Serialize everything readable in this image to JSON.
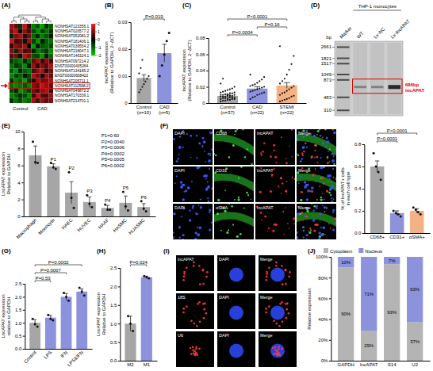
{
  "chart_data": [
    {
      "type": "heatmap",
      "panel_label": "(A)",
      "row_labels": [
        "NONHSAT123356.1",
        "NONHSAT020577.2",
        "NONHSAT052081.2",
        "NONHSAT181406.1",
        "NONHSAT039554.2",
        "NONHSAT218047.1",
        "NONHSAT146324.1",
        "NONHSAT097214.2",
        "ENST00000435264",
        "NONHSAT134185.2",
        "ENST00000608422",
        "NONHSAT205711.1",
        "NONHSAT112568.2",
        "NONHSAT049872.2",
        "NONHSAT170339.1",
        "NONHSAT214701.1"
      ],
      "columns": [
        "Control",
        "Control",
        "Control",
        "Control",
        "Control",
        "CAD",
        "CAD",
        "CAD",
        "CAD",
        "CAD"
      ],
      "cells": [
        [
          1.2,
          0.8,
          -0.5,
          1.5,
          0.3,
          -1.2,
          -0.8,
          -1.5,
          -0.4,
          -0.9
        ],
        [
          0.9,
          1.4,
          0.2,
          1.1,
          0.6,
          -0.7,
          -1.3,
          -0.6,
          -1.1,
          -0.5
        ],
        [
          -0.3,
          1.0,
          1.3,
          0.4,
          0.9,
          -1.0,
          -0.4,
          -1.2,
          -0.8,
          -0.2
        ],
        [
          1.5,
          0.5,
          0.7,
          -0.2,
          1.2,
          -0.6,
          -1.4,
          -0.3,
          -0.9,
          -1.1
        ],
        [
          0.4,
          1.1,
          0.9,
          1.3,
          -0.1,
          -1.5,
          -0.2,
          -0.8,
          -1.0,
          -0.7
        ],
        [
          1.0,
          -0.4,
          1.2,
          0.6,
          0.8,
          -0.3,
          -1.1,
          -0.9,
          -0.5,
          -1.3
        ],
        [
          0.7,
          0.9,
          -0.2,
          1.4,
          1.0,
          -0.8,
          -0.6,
          -1.4,
          -0.2,
          -1.0
        ],
        [
          -0.6,
          -0.9,
          -1.2,
          -0.4,
          -1.0,
          0.8,
          1.3,
          0.5,
          1.1,
          0.6
        ],
        [
          -1.1,
          -0.5,
          -0.8,
          -1.3,
          -0.2,
          1.2,
          0.4,
          1.0,
          0.7,
          1.4
        ],
        [
          -0.8,
          -1.4,
          -0.3,
          -0.9,
          -1.1,
          0.6,
          1.1,
          1.3,
          0.3,
          0.9
        ],
        [
          -1.3,
          -0.6,
          -1.0,
          -0.2,
          -0.7,
          1.4,
          0.9,
          0.2,
          1.2,
          0.8
        ],
        [
          -0.4,
          -1.2,
          -0.9,
          -1.5,
          -0.5,
          0.3,
          1.2,
          0.9,
          1.0,
          1.3
        ],
        [
          -1.0,
          -1.3,
          -1.1,
          -0.8,
          -1.2,
          1.1,
          0.8,
          1.5,
          1.2,
          0.9
        ],
        [
          -0.7,
          -0.3,
          -1.4,
          -1.0,
          -0.6,
          0.9,
          0.5,
          1.1,
          1.4,
          0.4
        ],
        [
          -1.2,
          -0.9,
          -0.4,
          -0.7,
          -1.3,
          0.5,
          1.4,
          0.7,
          0.6,
          1.2
        ],
        [
          -0.5,
          -1.1,
          -0.7,
          -1.2,
          -0.9,
          1.3,
          0.6,
          1.2,
          0.8,
          1.0
        ]
      ],
      "color_range": [
        -2,
        2
      ],
      "colorbar_ticks": [
        -2,
        -1,
        0,
        1,
        2
      ],
      "highlight_row": 12
    },
    {
      "type": "bar",
      "panel_label": "(B)",
      "ylabel": [
        "lncAPAT expression",
        "(Relative to GAPDH, 2−ΔCT)"
      ],
      "categories": [
        "Control\n(n=10)",
        "CAD\n(n=5)"
      ],
      "values": [
        0.0093,
        0.0185
      ],
      "errors": [
        0.0012,
        0.0033
      ],
      "points": [
        [
          0.004,
          0.005,
          0.006,
          0.007,
          0.008,
          0.009,
          0.01,
          0.011,
          0.013,
          0.016
        ],
        [
          0.01,
          0.014,
          0.018,
          0.023,
          0.026
        ]
      ],
      "colors": [
        "#a6a6a6",
        "#8d92dd"
      ],
      "ylim": [
        0,
        0.03
      ],
      "yticks": [
        0,
        0.01,
        0.02,
        0.03
      ],
      "comparisons": [
        {
          "from": 0,
          "to": 1,
          "label": "P=0.019"
        }
      ]
    },
    {
      "type": "bar",
      "panel_label": "(C)",
      "ylabel": [
        "lncAPAT expression",
        "(Relative to GAPDH, 2−ΔCT)"
      ],
      "categories": [
        "Control\n(n=37)",
        "CAD\n(n=22)",
        "STEMI\n(n=22)"
      ],
      "values": [
        0.0088,
        0.0178,
        0.0216
      ],
      "errors": [
        0.0012,
        0.0022,
        0.0035
      ],
      "points": [
        [
          0.002,
          0.003,
          0.003,
          0.004,
          0.004,
          0.005,
          0.005,
          0.005,
          0.006,
          0.006,
          0.006,
          0.007,
          0.007,
          0.007,
          0.008,
          0.008,
          0.008,
          0.009,
          0.009,
          0.009,
          0.01,
          0.01,
          0.01,
          0.011,
          0.011,
          0.012,
          0.012,
          0.013,
          0.013,
          0.014,
          0.015,
          0.016,
          0.017,
          0.018,
          0.02,
          0.024,
          0.03
        ],
        [
          0.005,
          0.007,
          0.008,
          0.01,
          0.011,
          0.012,
          0.013,
          0.014,
          0.015,
          0.016,
          0.017,
          0.018,
          0.019,
          0.02,
          0.021,
          0.022,
          0.023,
          0.025,
          0.027,
          0.029,
          0.032,
          0.035
        ],
        [
          0.002,
          0.003,
          0.004,
          0.005,
          0.006,
          0.008,
          0.009,
          0.01,
          0.012,
          0.013,
          0.015,
          0.017,
          0.019,
          0.021,
          0.024,
          0.027,
          0.03,
          0.035,
          0.041,
          0.048,
          0.058,
          0.07
        ]
      ],
      "colors": [
        "#a6a6a6",
        "#8d92dd",
        "#f4b183"
      ],
      "ylim": [
        0,
        0.08
      ],
      "yticks": [
        0,
        0.02,
        0.04,
        0.06,
        0.08
      ],
      "comparisons": [
        {
          "from": 0,
          "to": 1,
          "label": "P=0.0004"
        },
        {
          "from": 1,
          "to": 2,
          "label": "P=0.16"
        },
        {
          "from": 0,
          "to": 2,
          "label": "P<0.0001"
        }
      ]
    },
    {
      "type": "gel",
      "panel_label": "(D)",
      "header": "THP-1 monocytes",
      "lanes": [
        "Marker",
        "WT",
        "Lv-NC",
        "Lv-lncAPAT"
      ],
      "ylabel": "bp",
      "log": "y",
      "ylim": [
        280,
        3000
      ],
      "yticks": [
        2661,
        1821,
        1517,
        1049,
        873,
        483,
        310
      ],
      "bands": [
        null,
        686,
        686,
        686
      ],
      "band_label": [
        "686bp",
        "lncAPAT"
      ]
    },
    {
      "type": "bar",
      "panel_label": "(E)",
      "ylabel": [
        "LncAPAT expression",
        "Relative to GAPDH"
      ],
      "categories": [
        "Macrophage",
        "Monocyte",
        "HAEC",
        "HUVEC",
        "HAAF",
        "HASMC",
        "HUASMC"
      ],
      "values": [
        7.2,
        5.9,
        2.8,
        1.7,
        1.0,
        1.6,
        1.1
      ],
      "errors": [
        1.1,
        0.3,
        1.3,
        0.6,
        0.3,
        0.8,
        0.4
      ],
      "points": [
        [
          8.8,
          6.4,
          6.3
        ],
        [
          6.3,
          5.8,
          5.6
        ],
        [
          5.2,
          2.2,
          1.0
        ],
        [
          2.5,
          1.5,
          1.1
        ],
        [
          1.4,
          0.8,
          0.8
        ],
        [
          2.9,
          1.2,
          0.7
        ],
        [
          1.8,
          0.9,
          0.6
        ]
      ],
      "color": "#a6a6a6",
      "ylim": [
        0,
        10
      ],
      "yticks": [
        0,
        2,
        4,
        6,
        8,
        10
      ],
      "bar_labels": [
        null,
        "P1",
        "P2",
        "P3",
        "P4",
        "P5",
        "P6"
      ],
      "notes": [
        "P1=0.60",
        "P2=0.0040",
        "P3=0.0006",
        "P4=0.0002",
        "P5=0.0005",
        "P6=0.0002"
      ]
    },
    {
      "type": "image_grid",
      "panel_label": "(F)",
      "rows": [
        [
          "DAPI",
          "CD68",
          "lncAPAT",
          "Merge"
        ],
        [
          "DAPI",
          "CD31",
          "lncAPAT",
          "Merge"
        ],
        [
          "DAPI",
          "αSMA",
          "lncAPAT",
          "Merge"
        ]
      ]
    },
    {
      "type": "bar",
      "ylabel": [
        "% of lncAPAT+ cells",
        "in each cell type"
      ],
      "categories": [
        "CD68+",
        "CD31+",
        "αSMA+"
      ],
      "values": [
        0.6,
        0.18,
        0.2
      ],
      "errors": [
        0.05,
        0.02,
        0.02
      ],
      "points": [
        [
          0.72,
          0.6,
          0.55,
          0.48
        ],
        [
          0.2,
          0.18,
          0.17,
          0.15
        ],
        [
          0.23,
          0.21,
          0.19,
          0.17
        ]
      ],
      "colors": [
        "#a6a6a6",
        "#8d92dd",
        "#f4b183"
      ],
      "ylim": [
        0,
        0.8
      ],
      "yticks": [
        {
          "value": 0,
          "label": "0.0"
        },
        0.2,
        0.4,
        0.6,
        0.8
      ],
      "comparisons": [
        {
          "from": 0,
          "to": 1,
          "label": "P<0.0001"
        },
        {
          "from": 0,
          "to": 2,
          "label": "P<0.0001"
        }
      ]
    },
    {
      "type": "bar",
      "panel_label": "(G)",
      "ylabel": [
        "LncAPAT expression",
        "relative to GAPDH"
      ],
      "categories": [
        "Control",
        "LPS",
        "IFN",
        "LPS&IFN"
      ],
      "values": [
        1.0,
        1.2,
        2.0,
        2.2
      ],
      "errors": [
        0.12,
        0.08,
        0.13,
        0.1
      ],
      "points": [
        [
          1.15,
          0.95,
          0.85
        ],
        [
          1.3,
          1.15,
          1.1
        ],
        [
          2.15,
          2.0,
          1.85
        ],
        [
          2.35,
          2.2,
          2.05
        ]
      ],
      "colors": [
        "#a6a6a6",
        "#8d92dd",
        "#8d92dd",
        "#8d92dd"
      ],
      "ylim": [
        0,
        2.5
      ],
      "yticks": [
        {
          "value": 0,
          "label": "0.0"
        },
        0.5,
        {
          "value": 1,
          "label": "1.0"
        },
        1.5,
        {
          "value": 2,
          "label": "2.0"
        },
        2.5
      ],
      "comparisons": [
        {
          "from": 0,
          "to": 1,
          "label": "P=0.53"
        },
        {
          "from": 0,
          "to": 2,
          "label": "P=0.0007"
        },
        {
          "from": 0,
          "to": 3,
          "label": "P=0.0002"
        }
      ]
    },
    {
      "type": "bar",
      "panel_label": "(H)",
      "ylabel": [
        "LncAPAT expression",
        "Relative to GAPDH"
      ],
      "categories": [
        "M2",
        "M1"
      ],
      "values": [
        1.0,
        2.25
      ],
      "errors": [
        0.2,
        0.03
      ],
      "points": [
        [
          1.2,
          1.0,
          0.8
        ],
        [
          2.28,
          2.25,
          2.22
        ]
      ],
      "colors": [
        "#a6a6a6",
        "#8d92dd"
      ],
      "ylim": [
        0,
        2.5
      ],
      "yticks": [
        {
          "value": 0,
          "label": "0.0"
        },
        0.5,
        {
          "value": 1,
          "label": "1.0"
        },
        1.5,
        {
          "value": 2,
          "label": "2.0"
        },
        2.5
      ],
      "comparisons": [
        {
          "from": 0,
          "to": 1,
          "label": "P=0.024"
        }
      ]
    },
    {
      "type": "image_grid",
      "panel_label": "(I)",
      "rows": [
        [
          "lncAPAT",
          "DAPI",
          "Merge"
        ],
        [
          "18S",
          "DAPI",
          "Merge"
        ],
        [
          "U6",
          "DAPI",
          "Merge"
        ]
      ]
    },
    {
      "type": "bar",
      "panel_label": "(J)",
      "stacked": true,
      "data_labels": true,
      "legend": "top",
      "ylabel": [
        "Relative expression"
      ],
      "categories": [
        "GAPDH",
        "lncAPAT",
        "S14",
        "U2"
      ],
      "series": [
        {
          "name": "Cytoplasm",
          "color": "#b4b4b4",
          "values": [
            90,
            29,
            93,
            37
          ],
          "value_labels": [
            "90%",
            "29%",
            "93%",
            "37%"
          ]
        },
        {
          "name": "Nucleus",
          "color": "#8d92dd",
          "values": [
            10,
            71,
            7,
            63
          ],
          "value_labels": [
            "10%",
            "71%",
            "7%",
            "63%"
          ]
        }
      ],
      "ylim": [
        0,
        100
      ],
      "yticks": [
        {
          "value": 0,
          "label": "0%"
        },
        {
          "value": 20,
          "label": "20%"
        },
        {
          "value": 40,
          "label": "40%"
        },
        {
          "value": 60,
          "label": "60%"
        },
        {
          "value": 80,
          "label": "80%"
        },
        {
          "value": 100,
          "label": "100%"
        }
      ]
    }
  ]
}
